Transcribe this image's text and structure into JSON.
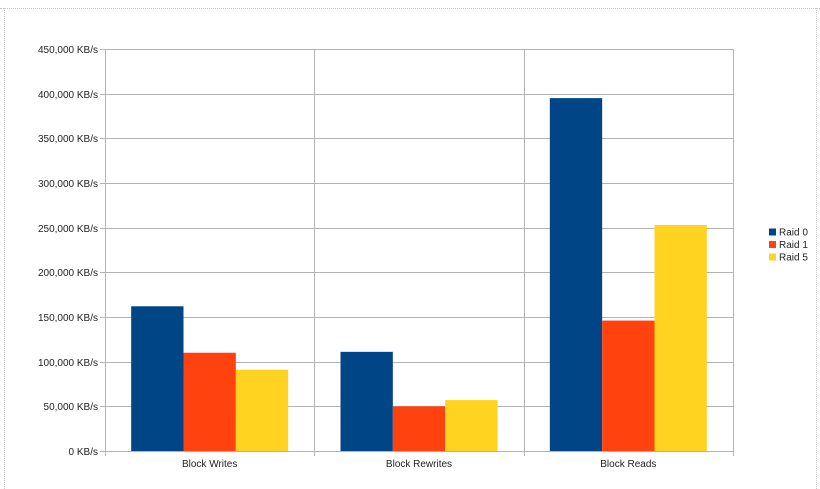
{
  "chart_data": {
    "type": "bar",
    "categories": [
      "Block Writes",
      "Block Rewrites",
      "Block Reads"
    ],
    "series": [
      {
        "name": "Raid  0",
        "color": "#004586",
        "values": [
          162000,
          111000,
          395000
        ]
      },
      {
        "name": "Raid  1",
        "color": "#ff420e",
        "values": [
          110000,
          50000,
          146000
        ]
      },
      {
        "name": "Raid  5",
        "color": "#ffd320",
        "values": [
          91000,
          57000,
          253000
        ]
      }
    ],
    "y_ticks": [
      "0 KB/s",
      "50,000 KB/s",
      "100,000 KB/s",
      "150,000 KB/s",
      "200,000 KB/s",
      "250,000 KB/s",
      "300,000 KB/s",
      "350,000 KB/s",
      "400,000 KB/s",
      "450,000 KB/s"
    ],
    "ylim": [
      0,
      450000
    ],
    "y_step": 50000,
    "grid": true,
    "legend_position": "right",
    "title": "",
    "xlabel": "",
    "ylabel": ""
  }
}
